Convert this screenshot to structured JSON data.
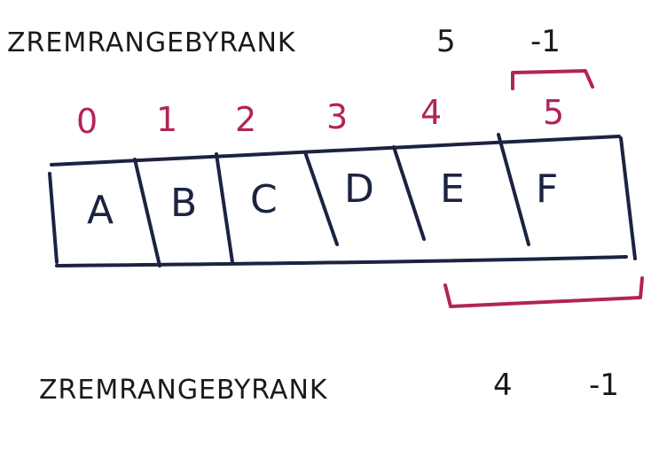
{
  "commands": [
    {
      "name": "ZREMRANGEBYRANK",
      "start": "5",
      "stop": "-1"
    },
    {
      "name": "ZREMRANGEBYRANK",
      "start": "4",
      "stop": "-1"
    }
  ],
  "indices": [
    "0",
    "1",
    "2",
    "3",
    "4",
    "5"
  ],
  "cells": [
    "A",
    "B",
    "C",
    "D",
    "E",
    "F"
  ],
  "colors": {
    "ink": "#1c2340",
    "highlight": "#b0245a"
  }
}
